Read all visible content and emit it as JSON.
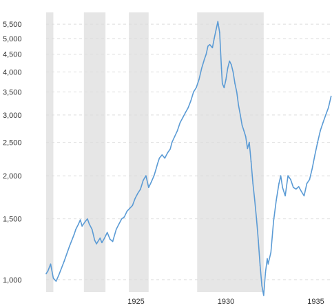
{
  "chart_data": {
    "type": "line",
    "title": "",
    "xlabel": "",
    "ylabel": "",
    "y_scale": "log",
    "xlim": [
      1920.0,
      1935.9
    ],
    "ylim": [
      920,
      5950
    ],
    "y_ticks": [
      1000,
      1500,
      2000,
      2500,
      3000,
      3500,
      4000,
      4500,
      5000,
      5500
    ],
    "y_tick_labels": [
      "1,000",
      "1,500",
      "2,000",
      "2,500",
      "3,000",
      "3,500",
      "4,000",
      "4,500",
      "5,000",
      "5,500"
    ],
    "x_ticks": [
      1925,
      1930,
      1935
    ],
    "x_tick_labels": [
      "1925",
      "1930",
      "1935"
    ],
    "grid": true,
    "shaded_periods": [
      [
        1920.0,
        1920.4
      ],
      [
        1922.1,
        1923.3
      ],
      [
        1924.6,
        1925.7
      ],
      [
        1928.4,
        1932.1
      ]
    ],
    "colors": {
      "line": "#5b9bd5",
      "shade": "#e6e6e6",
      "grid": "#dddddd",
      "text": "#333333"
    },
    "series": [
      {
        "name": "",
        "x": [
          1920.0,
          1920.1,
          1920.25,
          1920.4,
          1920.55,
          1920.7,
          1921.0,
          1921.3,
          1921.55,
          1921.65,
          1921.8,
          1921.9,
          1922.0,
          1922.2,
          1922.3,
          1922.4,
          1922.55,
          1922.7,
          1922.8,
          1923.0,
          1923.1,
          1923.25,
          1923.4,
          1923.55,
          1923.7,
          1923.9,
          1924.05,
          1924.2,
          1924.35,
          1924.5,
          1924.65,
          1924.8,
          1924.95,
          1925.1,
          1925.25,
          1925.4,
          1925.55,
          1925.7,
          1925.85,
          1926.0,
          1926.1,
          1926.2,
          1926.3,
          1926.45,
          1926.6,
          1926.75,
          1926.9,
          1927.0,
          1927.15,
          1927.3,
          1927.45,
          1927.6,
          1927.75,
          1927.9,
          1928.05,
          1928.2,
          1928.35,
          1928.5,
          1928.65,
          1928.8,
          1928.9,
          1929.0,
          1929.1,
          1929.25,
          1929.35,
          1929.45,
          1929.55,
          1929.65,
          1929.75,
          1929.8,
          1929.9,
          1930.0,
          1930.1,
          1930.2,
          1930.3,
          1930.4,
          1930.5,
          1930.6,
          1930.7,
          1930.8,
          1930.9,
          1931.0,
          1931.1,
          1931.2,
          1931.3,
          1931.4,
          1931.5,
          1931.6,
          1931.7,
          1931.75,
          1931.8,
          1931.9,
          1932.0,
          1932.1,
          1932.2,
          1932.3,
          1932.35,
          1932.5,
          1932.65,
          1932.8,
          1932.95,
          1933.05,
          1933.15,
          1933.3,
          1933.45,
          1933.6,
          1933.75,
          1933.9,
          1934.05,
          1934.2,
          1934.35,
          1934.5,
          1934.65,
          1934.8,
          1934.95,
          1935.1,
          1935.25,
          1935.4,
          1935.55,
          1935.7,
          1935.85
        ],
        "values": [
          1040,
          1060,
          1110,
          1010,
          990,
          1030,
          1130,
          1250,
          1350,
          1400,
          1450,
          1490,
          1430,
          1480,
          1500,
          1450,
          1400,
          1300,
          1270,
          1320,
          1280,
          1320,
          1370,
          1310,
          1290,
          1400,
          1450,
          1500,
          1520,
          1580,
          1610,
          1640,
          1720,
          1780,
          1830,
          1940,
          2000,
          1850,
          1920,
          2000,
          2080,
          2170,
          2250,
          2300,
          2250,
          2330,
          2390,
          2500,
          2600,
          2700,
          2850,
          2950,
          3050,
          3150,
          3300,
          3500,
          3600,
          3800,
          4100,
          4350,
          4500,
          4750,
          4800,
          4700,
          5000,
          5300,
          5600,
          5200,
          4100,
          3700,
          3600,
          3800,
          4100,
          4300,
          4200,
          4000,
          3700,
          3500,
          3200,
          3000,
          2800,
          2700,
          2600,
          2400,
          2500,
          2200,
          1900,
          1700,
          1500,
          1400,
          1300,
          1100,
          960,
          900,
          1050,
          1150,
          1110,
          1200,
          1480,
          1700,
          1900,
          2000,
          1850,
          1750,
          2000,
          1950,
          1850,
          1830,
          1860,
          1800,
          1750,
          1900,
          1950,
          2100,
          2300,
          2500,
          2700,
          2850,
          3000,
          3150,
          3400
        ]
      }
    ]
  }
}
